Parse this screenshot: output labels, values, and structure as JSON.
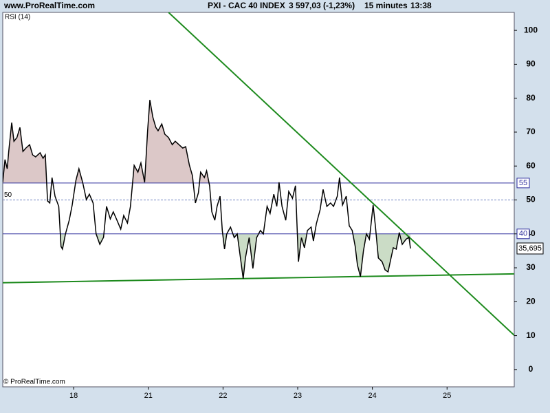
{
  "chart_data": {
    "type": "line",
    "site": "www.ProRealTime.com",
    "instrument": "PXI - CAC 40 INDEX",
    "quote": "3 597,03 (-1,23%)",
    "interval": "15 minutes",
    "time": "13:38",
    "indicator": "RSI (14)",
    "copyright": "© ProRealTime.com",
    "color": "#000000",
    "x": [
      0.05,
      0.08,
      0.11,
      0.13,
      0.17,
      0.2,
      0.24,
      0.28,
      0.32,
      0.36,
      0.41,
      0.45,
      0.49,
      0.55,
      0.59,
      0.62,
      0.65,
      0.68,
      0.71,
      0.75,
      0.8,
      0.83,
      0.85,
      0.89,
      0.94,
      0.98,
      1.03,
      1.07,
      1.12,
      1.17,
      1.21,
      1.26,
      1.3,
      1.35,
      1.4,
      1.44,
      1.49,
      1.53,
      1.58,
      1.63,
      1.67,
      1.72,
      1.76,
      1.81,
      1.86,
      1.9,
      1.95,
      1.99,
      2.02,
      2.06,
      2.1,
      2.13,
      2.18,
      2.22,
      2.27,
      2.32,
      2.36,
      2.41,
      2.46,
      2.5,
      2.55,
      2.59,
      2.63,
      2.67,
      2.7,
      2.75,
      2.78,
      2.82,
      2.85,
      2.89,
      2.92,
      2.96,
      2.99,
      3.02,
      3.05,
      3.1,
      3.15,
      3.19,
      3.24,
      3.27,
      3.3,
      3.35,
      3.4,
      3.45,
      3.5,
      3.54,
      3.59,
      3.63,
      3.68,
      3.72,
      3.75,
      3.79,
      3.84,
      3.88,
      3.93,
      3.97,
      4.01,
      4.05,
      4.09,
      4.13,
      4.18,
      4.21,
      4.25,
      4.3,
      4.34,
      4.39,
      4.44,
      4.48,
      4.53,
      4.56,
      4.6,
      4.65,
      4.69,
      4.73,
      4.77,
      4.8,
      4.84,
      4.88,
      4.92,
      4.96,
      5.01,
      5.04,
      5.08,
      5.13,
      5.17,
      5.21,
      5.25,
      5.28,
      5.32,
      5.36,
      5.4,
      5.45,
      5.49,
      5.51
    ],
    "values": [
      55.2,
      61.9,
      59.2,
      64.3,
      72.8,
      67.3,
      68.4,
      71.4,
      64.3,
      65.3,
      66.3,
      63.3,
      62.7,
      63.9,
      62.3,
      63.3,
      49.7,
      49.1,
      56.6,
      51.1,
      48.1,
      36.3,
      35.5,
      40.0,
      44.0,
      48.5,
      55.8,
      59.2,
      55.2,
      50.1,
      51.7,
      49.1,
      40.0,
      36.9,
      39.0,
      48.1,
      44.4,
      46.5,
      44.0,
      41.4,
      45.4,
      43.2,
      48.1,
      60.2,
      58.2,
      60.9,
      55.2,
      70.4,
      79.5,
      74.4,
      71.4,
      70.4,
      72.4,
      69.4,
      68.4,
      66.3,
      67.3,
      66.3,
      65.3,
      65.7,
      60.2,
      57.2,
      49.1,
      52.1,
      58.2,
      56.6,
      58.6,
      54.2,
      46.5,
      44.0,
      48.1,
      51.1,
      41.0,
      35.5,
      40.0,
      42.0,
      38.9,
      40.0,
      31.8,
      26.8,
      32.9,
      38.9,
      29.8,
      38.9,
      41.0,
      40.0,
      48.1,
      46.0,
      51.7,
      48.1,
      55.2,
      48.1,
      44.0,
      52.5,
      50.5,
      54.2,
      31.8,
      38.9,
      35.9,
      41.0,
      42.0,
      37.9,
      43.0,
      47.1,
      53.1,
      48.1,
      49.1,
      48.1,
      51.1,
      56.6,
      48.5,
      51.1,
      42.4,
      41.0,
      36.3,
      30.8,
      27.4,
      34.9,
      40.0,
      38.4,
      48.5,
      42.4,
      32.9,
      31.8,
      29.4,
      28.8,
      32.9,
      35.9,
      35.5,
      40.4,
      36.9,
      38.4,
      39.0,
      35.695
    ],
    "last_value_label": "35,695",
    "levels": [
      {
        "value": 55,
        "label": "55",
        "style": "solid",
        "fill": "#dcc8c8"
      },
      {
        "value": 40,
        "label": "40",
        "style": "solid",
        "fill": "#cbdcc6"
      },
      {
        "value": 50,
        "label": "50",
        "style": "dashed"
      }
    ],
    "trendlines": [
      {
        "x": [
          2.27,
          6.9
        ],
        "y": [
          105.3,
          10.1
        ],
        "color": "#1d8a1d"
      },
      {
        "x": [
          0.05,
          6.9
        ],
        "y": [
          25.6,
          28.2
        ],
        "color": "#1d8a1d"
      }
    ],
    "xlim": [
      0.05,
      6.9
    ],
    "ylim": [
      -5.1,
      105.3
    ],
    "xticks": [
      {
        "value": 1,
        "label": "18"
      },
      {
        "value": 2,
        "label": "21"
      },
      {
        "value": 3,
        "label": "22"
      },
      {
        "value": 4,
        "label": "23"
      },
      {
        "value": 5,
        "label": "24"
      },
      {
        "value": 6,
        "label": "25"
      }
    ],
    "yticks": [
      0,
      10,
      20,
      30,
      40,
      50,
      60,
      70,
      80,
      90,
      100
    ]
  }
}
